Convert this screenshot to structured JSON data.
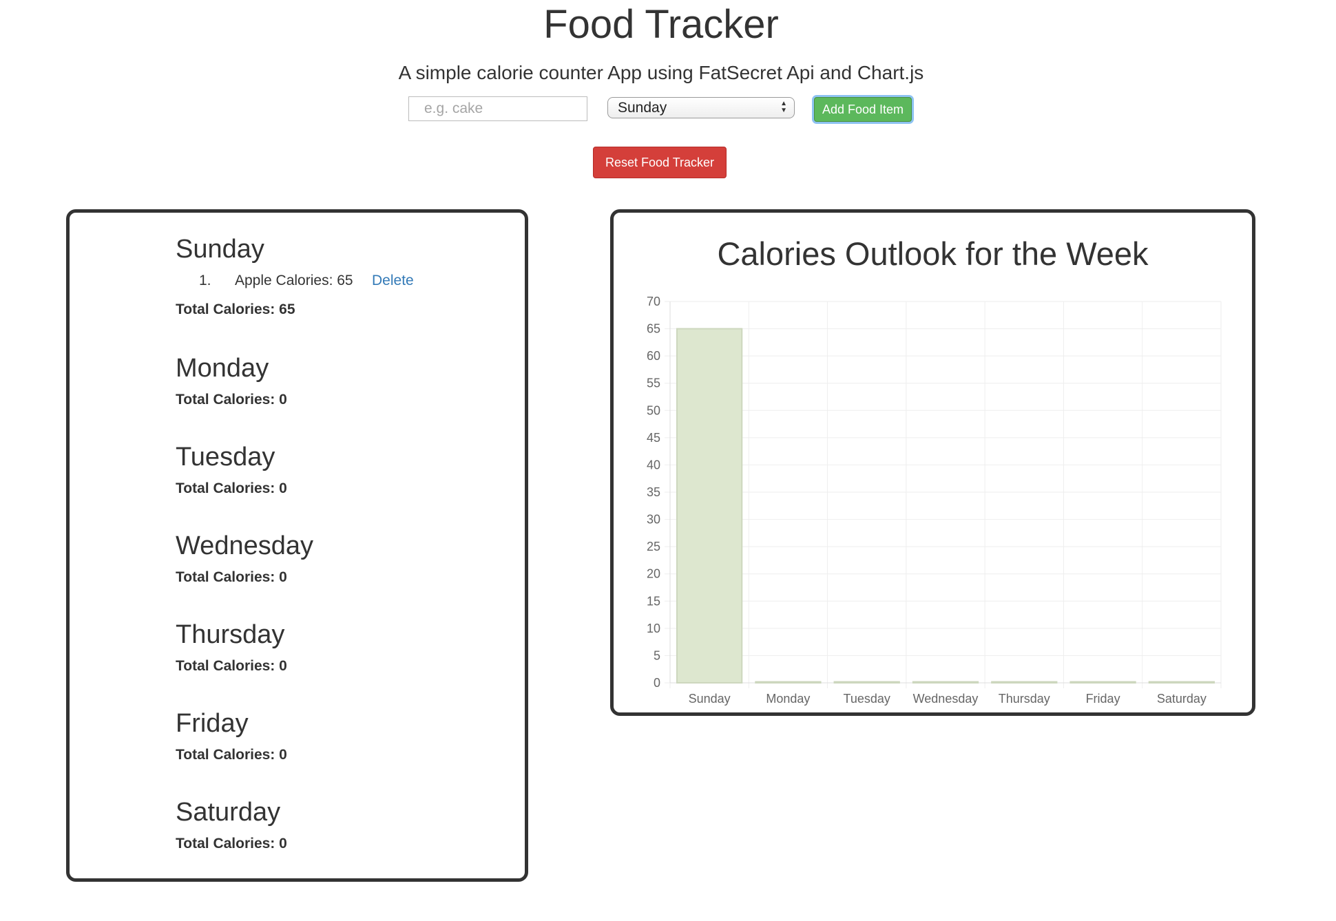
{
  "header": {
    "title": "Food Tracker",
    "subtitle": "A simple calorie counter App using FatSecret Api and Chart.js"
  },
  "form": {
    "food_placeholder": "e.g. cake",
    "food_value": "",
    "day_selected": "Sunday",
    "add_label": "Add Food Item",
    "reset_label": "Reset Food Tracker"
  },
  "days": [
    {
      "name": "Sunday",
      "items": [
        {
          "num": "1.",
          "text": "Apple Calories: 65",
          "delete_label": "Delete"
        }
      ],
      "total": "Total Calories: 65"
    },
    {
      "name": "Monday",
      "items": [],
      "total": "Total Calories: 0"
    },
    {
      "name": "Tuesday",
      "items": [],
      "total": "Total Calories: 0"
    },
    {
      "name": "Wednesday",
      "items": [],
      "total": "Total Calories: 0"
    },
    {
      "name": "Thursday",
      "items": [],
      "total": "Total Calories: 0"
    },
    {
      "name": "Friday",
      "items": [],
      "total": "Total Calories: 0"
    },
    {
      "name": "Saturday",
      "items": [],
      "total": "Total Calories: 0"
    }
  ],
  "chart_data": {
    "type": "bar",
    "title": "Calories Outlook for the Week",
    "categories": [
      "Sunday",
      "Monday",
      "Tuesday",
      "Wednesday",
      "Thursday",
      "Friday",
      "Saturday"
    ],
    "values": [
      65,
      0,
      0,
      0,
      0,
      0,
      0
    ],
    "ylim": [
      0,
      70
    ],
    "yticks": [
      "0",
      "5",
      "10",
      "15",
      "20",
      "25",
      "30",
      "35",
      "40",
      "45",
      "50",
      "55",
      "60",
      "65",
      "70"
    ],
    "xlabel": "",
    "ylabel": "",
    "grid": true,
    "bar_fill": "#dde7cf",
    "bar_stroke": "#cdd7be",
    "grid_color": "#eeeeee"
  }
}
